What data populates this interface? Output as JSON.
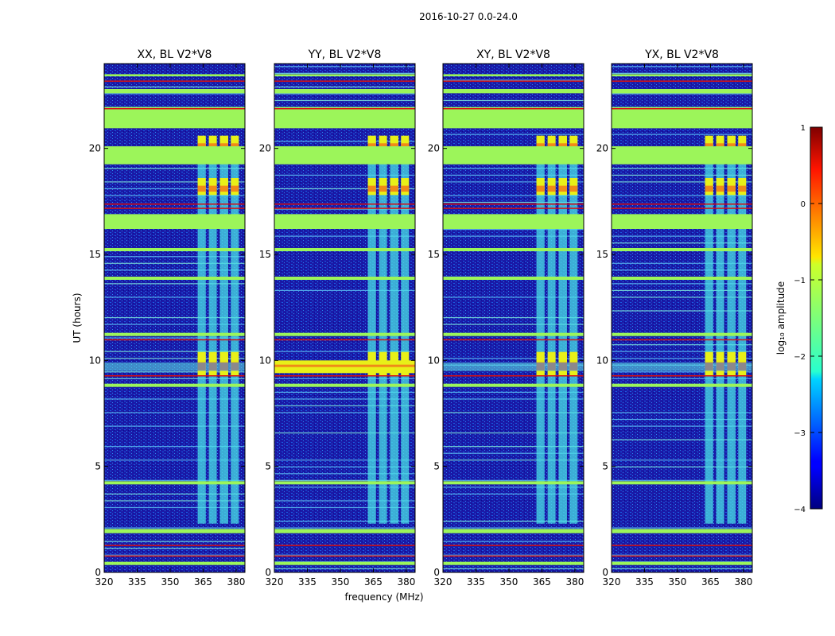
{
  "figure_title": "2016-10-27 0.0-24.0",
  "colors": {
    "bg_dark": "#1a1aa8",
    "bg_mid": "#1a5ce0",
    "flag_green": "#9cf55a",
    "hot_red": "#d81010",
    "rfi_cyan": "#4ae0e6",
    "orange": "#f08a18",
    "yellow": "#e8f018"
  },
  "colorbar": {
    "label": "log₁₀ amplitude",
    "min": -4,
    "max": 1,
    "ticks": [
      {
        "value": 1,
        "label": "1"
      },
      {
        "value": 0,
        "label": "0"
      },
      {
        "value": -1,
        "label": "−1"
      },
      {
        "value": -2,
        "label": "−2"
      },
      {
        "value": -3,
        "label": "−3"
      },
      {
        "value": -4,
        "label": "−4"
      }
    ]
  },
  "chart_data": {
    "type": "heatmap",
    "shared_y": {
      "label": "UT (hours)",
      "range": [
        0,
        24
      ],
      "ticks": [
        {
          "value": 0,
          "label": "0"
        },
        {
          "value": 5,
          "label": "5"
        },
        {
          "value": 10,
          "label": "10"
        },
        {
          "value": 15,
          "label": "15"
        },
        {
          "value": 20,
          "label": "20"
        }
      ]
    },
    "shared_x": {
      "label": "frequency (MHz)",
      "range": [
        320,
        384
      ],
      "ticks": [
        {
          "value": 320,
          "label": "320"
        },
        {
          "value": 335,
          "label": "335"
        },
        {
          "value": 350,
          "label": "350"
        },
        {
          "value": 365,
          "label": "365"
        },
        {
          "value": 380,
          "label": "380"
        }
      ]
    },
    "panels": [
      {
        "title": "XX, BL V2*V8",
        "pol": "XX",
        "strong_band_10h": false
      },
      {
        "title": "YY, BL V2*V8",
        "pol": "YY",
        "strong_band_10h": true
      },
      {
        "title": "XY, BL V2*V8",
        "pol": "XY",
        "strong_band_10h": false
      },
      {
        "title": "YX, BL V2*V8",
        "pol": "YX",
        "strong_band_10h": false
      }
    ],
    "flagged_bands_hours": [
      [
        0.35,
        0.5
      ],
      [
        1.85,
        2.05
      ],
      [
        4.15,
        4.3
      ],
      [
        8.75,
        8.9
      ],
      [
        11.15,
        11.3
      ],
      [
        13.8,
        13.95
      ],
      [
        15.15,
        15.3
      ],
      [
        16.2,
        16.9
      ],
      [
        19.25,
        20.1
      ],
      [
        20.95,
        21.95
      ],
      [
        22.6,
        22.8
      ],
      [
        23.4,
        23.5
      ]
    ],
    "red_lines_hours": [
      0.8,
      1.3,
      17.2,
      17.4,
      9.3,
      11.0,
      21.9,
      23.2
    ],
    "rfi_channels_mhz": [
      [
        362.5,
        366.2
      ],
      [
        367.6,
        371.2
      ],
      [
        372.6,
        376.4
      ],
      [
        377.6,
        381.2
      ]
    ],
    "rfi_span_hours": [
      2.3,
      20.5
    ],
    "hot_bursts_hours": [
      [
        9.3,
        10.4
      ],
      [
        17.8,
        18.6
      ],
      [
        19.8,
        20.6
      ]
    ]
  }
}
